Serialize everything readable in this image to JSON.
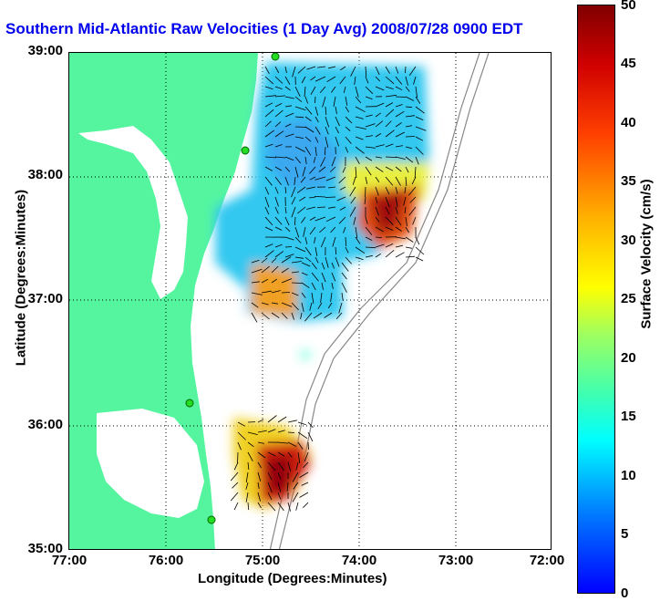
{
  "title": "Southern Mid-Atlantic Raw Velocities (1 Day Avg) 2008/07/28 0900 EDT",
  "xlabel": "Longitude (Degrees:Minutes)",
  "ylabel": "Latitude (Degrees:Minutes)",
  "x_ticks": [
    "77:00",
    "76:00",
    "75:00",
    "74:00",
    "73:00",
    "72:00"
  ],
  "y_ticks": [
    "39:00",
    "38:00",
    "37:00",
    "36:00",
    "35:00"
  ],
  "colorbar": {
    "label": "Surface Velocity (cm/s)",
    "ticks": [
      "50",
      "45",
      "40",
      "35",
      "30",
      "25",
      "20",
      "15",
      "10",
      "5",
      "0"
    ],
    "range": [
      0,
      50
    ]
  },
  "colors": {
    "land": "#55f5a0",
    "title": "#0000ee",
    "station": "#22dd22"
  }
}
